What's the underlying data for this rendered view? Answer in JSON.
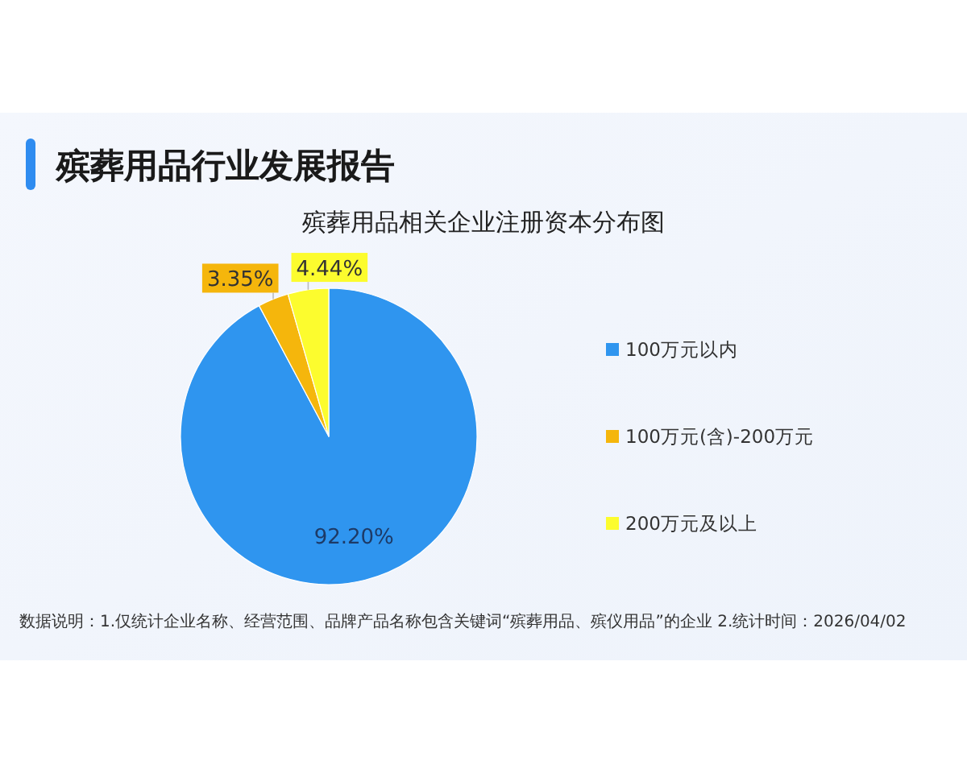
{
  "chart_data": {
    "type": "pie",
    "title": "殡葬用品行业发展报告",
    "subtitle": "殡葬用品相关企业注册资本分布图",
    "categories": [
      "100万元以内",
      "100万元(含)-200万元",
      "200万元及以上"
    ],
    "values": [
      92.2,
      3.35,
      4.44
    ],
    "colors": [
      "#2f95ef",
      "#f5b60c",
      "#fcfc2e"
    ],
    "value_labels": [
      "92.20%",
      "3.35%",
      "4.44%"
    ],
    "legend": "right",
    "annotations": [
      "数据说明：1.仅统计企业名称、经营范围、品牌产品名称包含关键词“殡葬用品、殡仪用品”的企业  2.统计时间：2026/04/02"
    ]
  }
}
